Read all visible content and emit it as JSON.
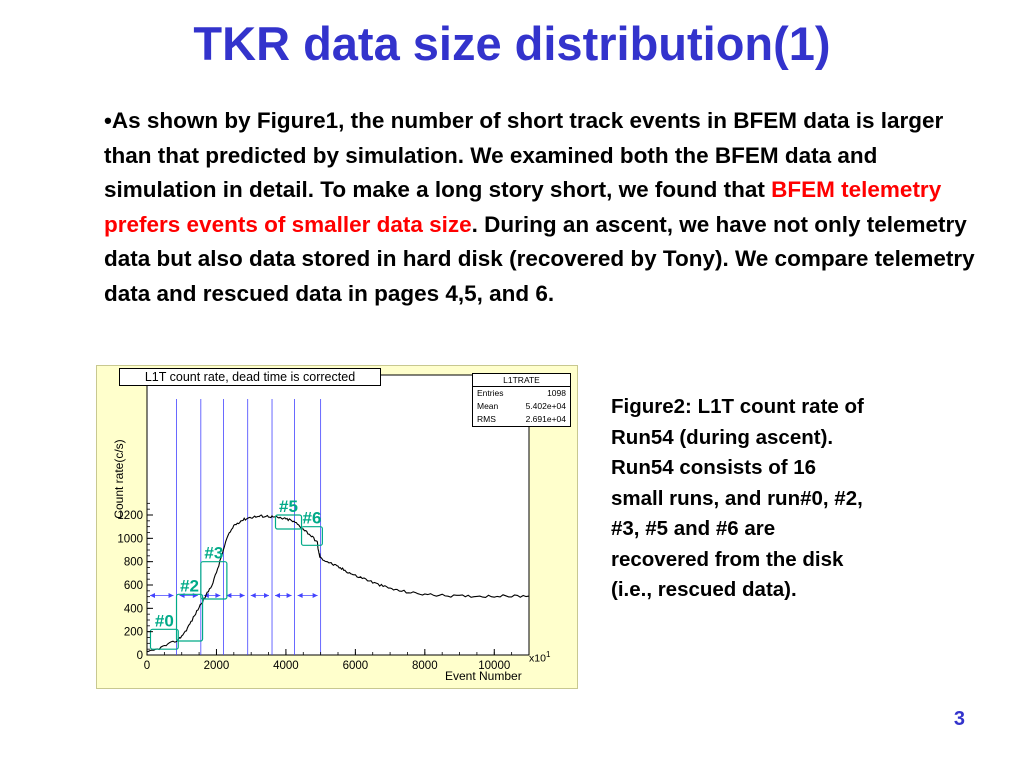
{
  "slide": {
    "title": "TKR data size distribution(1)",
    "body_before": "•As shown by Figure1, the number of short track events in BFEM data is larger than that predicted by simulation. We examined both the BFEM data and simulation in detail. To make a long story short, we found that ",
    "body_highlight": "BFEM telemetry prefers events of smaller data size",
    "body_after": ". During an ascent, we have not only telemetry data but also data stored in hard disk (recovered by Tony). We compare telemetry data and rescued data in pages 4,5, and 6.",
    "caption": "Figure2: L1T count rate of\nRun54 (during ascent).\nRun54 consists of 16\nsmall runs, and run#0, #2,\n#3, #5 and #6 are\nrecovered from the disk\n(i.e., rescued data).",
    "page_number": "3"
  },
  "colors": {
    "title": "#3333cc",
    "highlight": "#ff0000",
    "figure_background": "#ffffcc",
    "curve": "#000000",
    "run_boundaries": "#4444ff",
    "run_boxes": "#00aa88"
  },
  "chart_data": {
    "type": "line",
    "title": "L1T count rate, dead time is corrected",
    "xlabel": "Event Number",
    "ylabel": "Count rate(c/s)",
    "x_scale_label": "x10",
    "x_scale_exponent": "1",
    "xlim": [
      0,
      11000
    ],
    "ylim": [
      0,
      2400
    ],
    "x_ticks": [
      0,
      2000,
      4000,
      6000,
      8000,
      10000
    ],
    "y_ticks": [
      0,
      200,
      400,
      600,
      800,
      1000,
      1200
    ],
    "series": [
      {
        "x": [
          0,
          300,
          600,
          900,
          1100,
          1300,
          1500,
          1700,
          1900,
          2100,
          2300,
          2500,
          2700,
          2900,
          3100,
          3300,
          3500,
          3700,
          3900,
          4100,
          4300,
          4500,
          4700,
          4900,
          4950,
          5000,
          5200,
          5400,
          5600,
          5800,
          6000,
          6300,
          6600,
          6900,
          7200,
          7600,
          8000,
          8500,
          9000,
          9500,
          10000,
          10500,
          11000
        ],
        "y": [
          20,
          50,
          90,
          130,
          200,
          300,
          410,
          510,
          620,
          800,
          1000,
          1110,
          1150,
          1175,
          1185,
          1190,
          1190,
          1180,
          1170,
          1160,
          1130,
          1080,
          1030,
          970,
          870,
          830,
          800,
          770,
          740,
          710,
          680,
          650,
          610,
          580,
          555,
          535,
          520,
          510,
          505,
          505,
          505,
          505,
          505
        ]
      }
    ],
    "stats": {
      "name": "L1TRATE",
      "entries_label": "Entries",
      "entries": "1098",
      "mean_label": "Mean",
      "mean": "5.402e+04",
      "rms_label": "RMS",
      "rms": "2.691e+04"
    },
    "run_boundaries": [
      850,
      1550,
      2200,
      2900,
      3600,
      4250,
      5000
    ],
    "run_boxes": [
      {
        "label": "#0",
        "x0": 100,
        "x1": 900,
        "y0": 50,
        "y1": 220
      },
      {
        "label": "#2",
        "x0": 850,
        "x1": 1600,
        "y0": 120,
        "y1": 520
      },
      {
        "label": "#3",
        "x0": 1550,
        "x1": 2300,
        "y0": 480,
        "y1": 800
      },
      {
        "label": "#5",
        "x0": 3700,
        "x1": 4450,
        "y0": 1080,
        "y1": 1200
      },
      {
        "label": "#6",
        "x0": 4450,
        "x1": 5050,
        "y0": 940,
        "y1": 1100
      }
    ]
  }
}
